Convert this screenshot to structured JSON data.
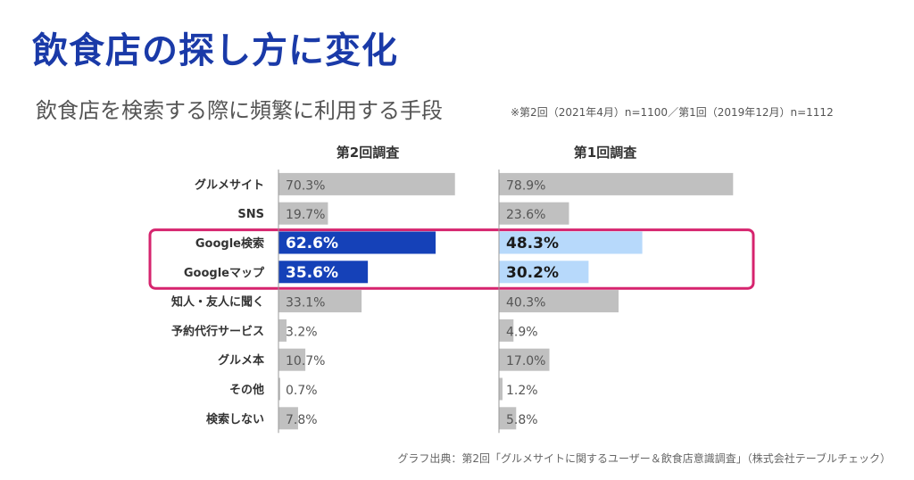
{
  "title": "飲食店の探し方に変化",
  "subtitle": "飲食店を検索する際に頻繁に利用する手段",
  "note": "※第2回（2021年4月）n=1100／第1回（2019年12月）n=1112",
  "source": "グラフ出典：第2回「グルメサイトに関するユーザー＆飲食店意識調査」（株式会社テーブルチェック）",
  "colors": {
    "gray_bar": "#c0c0c0",
    "second_highlight": "#1541b8",
    "first_highlight": "#b7d9fb",
    "highlight_box": "#d6246e",
    "axis": "#999999"
  },
  "chart_data": {
    "type": "bar",
    "orientation": "horizontal",
    "categories": [
      "グルメサイト",
      "SNS",
      "Google検索",
      "Googleマップ",
      "知人・友人に聞く",
      "予約代行サービス",
      "グルメ本",
      "その他",
      "検索しない"
    ],
    "series": [
      {
        "name": "第2回調査",
        "values": [
          70.3,
          19.7,
          62.6,
          35.6,
          33.1,
          3.2,
          10.7,
          0.7,
          7.8
        ],
        "labels": [
          "70.3%",
          "19.7%",
          "62.6%",
          "35.6%",
          "33.1%",
          "3.2%",
          "10.7%",
          "0.7%",
          "7.8%"
        ]
      },
      {
        "name": "第1回調査",
        "values": [
          78.9,
          23.6,
          48.3,
          30.2,
          40.3,
          4.9,
          17.0,
          1.2,
          5.8
        ],
        "labels": [
          "78.9%",
          "23.6%",
          "48.3%",
          "30.2%",
          "40.3%",
          "4.9%",
          "17.0%",
          "1.2%",
          "5.8%"
        ]
      }
    ],
    "highlighted_categories": [
      "Google検索",
      "Googleマップ"
    ],
    "xlim": [
      0,
      80
    ]
  }
}
